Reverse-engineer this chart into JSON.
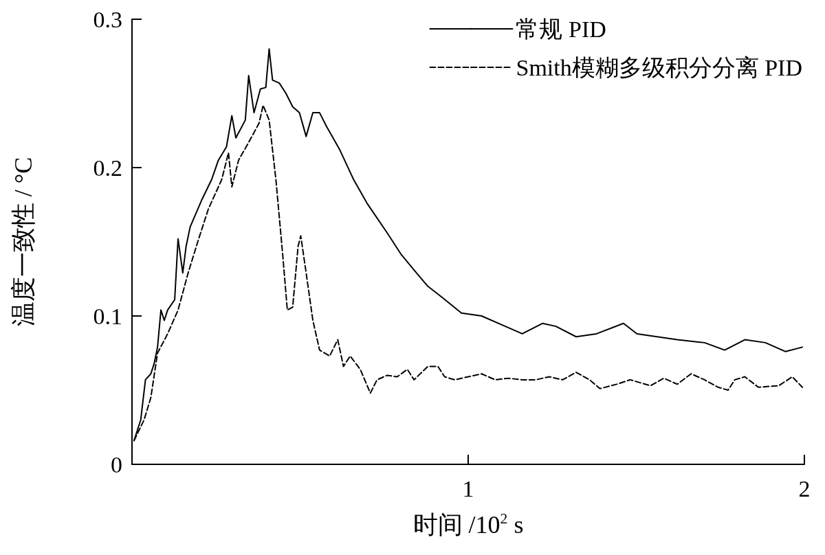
{
  "chart_data": {
    "type": "line",
    "xlabel": "时间 /10$^{2}$ s",
    "ylabel": "温度一致性 / °C",
    "xlim": [
      0,
      2
    ],
    "ylim": [
      0,
      0.3
    ],
    "xticks": [
      {
        "value": 0,
        "label": null
      },
      1,
      2
    ],
    "yticks": [
      0,
      0.1,
      0.2,
      0.3
    ],
    "grid": false,
    "legend": "top right",
    "marker": "none",
    "series": [
      {
        "name": "常规 PID",
        "color": "#000000",
        "line_style": "solid",
        "x": [
          0.006,
          0.026,
          0.04,
          0.056,
          0.066,
          0.076,
          0.086,
          0.096,
          0.106,
          0.127,
          0.137,
          0.151,
          0.161,
          0.173,
          0.207,
          0.237,
          0.257,
          0.281,
          0.297,
          0.309,
          0.337,
          0.347,
          0.363,
          0.382,
          0.398,
          0.408,
          0.418,
          0.438,
          0.458,
          0.478,
          0.498,
          0.518,
          0.538,
          0.558,
          0.578,
          0.618,
          0.659,
          0.699,
          0.759,
          0.799,
          0.839,
          0.88,
          0.92,
          0.98,
          1.04,
          1.1,
          1.161,
          1.221,
          1.261,
          1.321,
          1.382,
          1.462,
          1.502,
          1.562,
          1.622,
          1.703,
          1.763,
          1.823,
          1.884,
          1.944,
          1.994
        ],
        "values": [
          0.016,
          0.03,
          0.057,
          0.061,
          0.068,
          0.079,
          0.104,
          0.097,
          0.104,
          0.111,
          0.152,
          0.129,
          0.147,
          0.16,
          0.178,
          0.192,
          0.205,
          0.214,
          0.235,
          0.22,
          0.232,
          0.262,
          0.237,
          0.253,
          0.254,
          0.28,
          0.259,
          0.257,
          0.25,
          0.241,
          0.237,
          0.221,
          0.237,
          0.237,
          0.228,
          0.212,
          0.192,
          0.176,
          0.156,
          0.142,
          0.131,
          0.12,
          0.113,
          0.102,
          0.1,
          0.094,
          0.088,
          0.095,
          0.093,
          0.086,
          0.088,
          0.095,
          0.088,
          0.086,
          0.084,
          0.082,
          0.077,
          0.084,
          0.082,
          0.076,
          0.079
        ]
      },
      {
        "name": "Smith模糊多级积分分离 PID",
        "color": "#000000",
        "line_style": "dashed",
        "x": [
          0.006,
          0.036,
          0.056,
          0.076,
          0.106,
          0.137,
          0.167,
          0.197,
          0.227,
          0.267,
          0.287,
          0.297,
          0.317,
          0.347,
          0.378,
          0.39,
          0.408,
          0.428,
          0.448,
          0.462,
          0.478,
          0.494,
          0.502,
          0.518,
          0.538,
          0.558,
          0.588,
          0.612,
          0.629,
          0.649,
          0.679,
          0.709,
          0.729,
          0.759,
          0.789,
          0.819,
          0.839,
          0.88,
          0.91,
          0.93,
          0.96,
          1.0,
          1.04,
          1.08,
          1.12,
          1.161,
          1.201,
          1.241,
          1.281,
          1.321,
          1.361,
          1.392,
          1.442,
          1.482,
          1.542,
          1.582,
          1.622,
          1.663,
          1.703,
          1.743,
          1.773,
          1.793,
          1.823,
          1.863,
          1.924,
          1.964,
          1.994
        ],
        "values": [
          0.016,
          0.03,
          0.045,
          0.075,
          0.088,
          0.104,
          0.129,
          0.151,
          0.172,
          0.192,
          0.21,
          0.187,
          0.205,
          0.217,
          0.23,
          0.242,
          0.232,
          0.192,
          0.142,
          0.104,
          0.106,
          0.147,
          0.154,
          0.129,
          0.097,
          0.077,
          0.073,
          0.084,
          0.066,
          0.073,
          0.064,
          0.048,
          0.057,
          0.06,
          0.059,
          0.064,
          0.057,
          0.066,
          0.066,
          0.059,
          0.057,
          0.059,
          0.061,
          0.057,
          0.058,
          0.057,
          0.057,
          0.059,
          0.057,
          0.062,
          0.057,
          0.051,
          0.054,
          0.057,
          0.053,
          0.058,
          0.054,
          0.061,
          0.057,
          0.052,
          0.05,
          0.057,
          0.059,
          0.052,
          0.053,
          0.059,
          0.052
        ]
      }
    ]
  }
}
